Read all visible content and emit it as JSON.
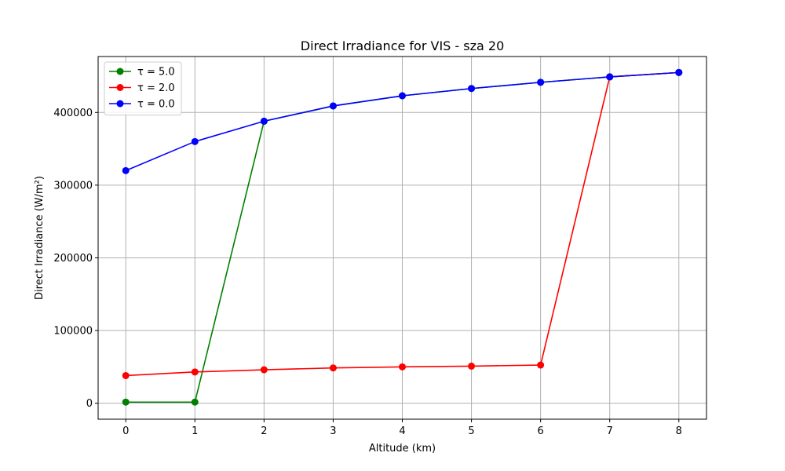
{
  "chart_data": {
    "type": "line",
    "title": "Direct Irradiance for VIS - sza 20",
    "xlabel": "Altitude (km)",
    "ylabel": "Direct Irradiance (W/m²)",
    "x": [
      0,
      1,
      2,
      3,
      4,
      5,
      6,
      7,
      8
    ],
    "xticks": [
      "0",
      "1",
      "2",
      "3",
      "4",
      "5",
      "6",
      "7",
      "8"
    ],
    "yticks": [
      "0",
      "100000",
      "200000",
      "300000",
      "400000"
    ],
    "xlim": [
      -0.4,
      8.4
    ],
    "ylim": [
      -22000,
      477000
    ],
    "grid": true,
    "legend_position": "top-left",
    "series": [
      {
        "name": "τ = 5.0",
        "color": "#008000",
        "values": [
          1500,
          1500,
          388000,
          409000,
          423000,
          433000,
          441500,
          449000,
          455000
        ]
      },
      {
        "name": "τ = 2.0",
        "color": "#ff0000",
        "values": [
          38000,
          43000,
          46000,
          48500,
          50000,
          51000,
          52500,
          449000,
          455000
        ]
      },
      {
        "name": "τ = 0.0",
        "color": "#0000ff",
        "values": [
          320000,
          360000,
          388000,
          409000,
          423000,
          433000,
          441500,
          449000,
          455000
        ]
      }
    ]
  }
}
